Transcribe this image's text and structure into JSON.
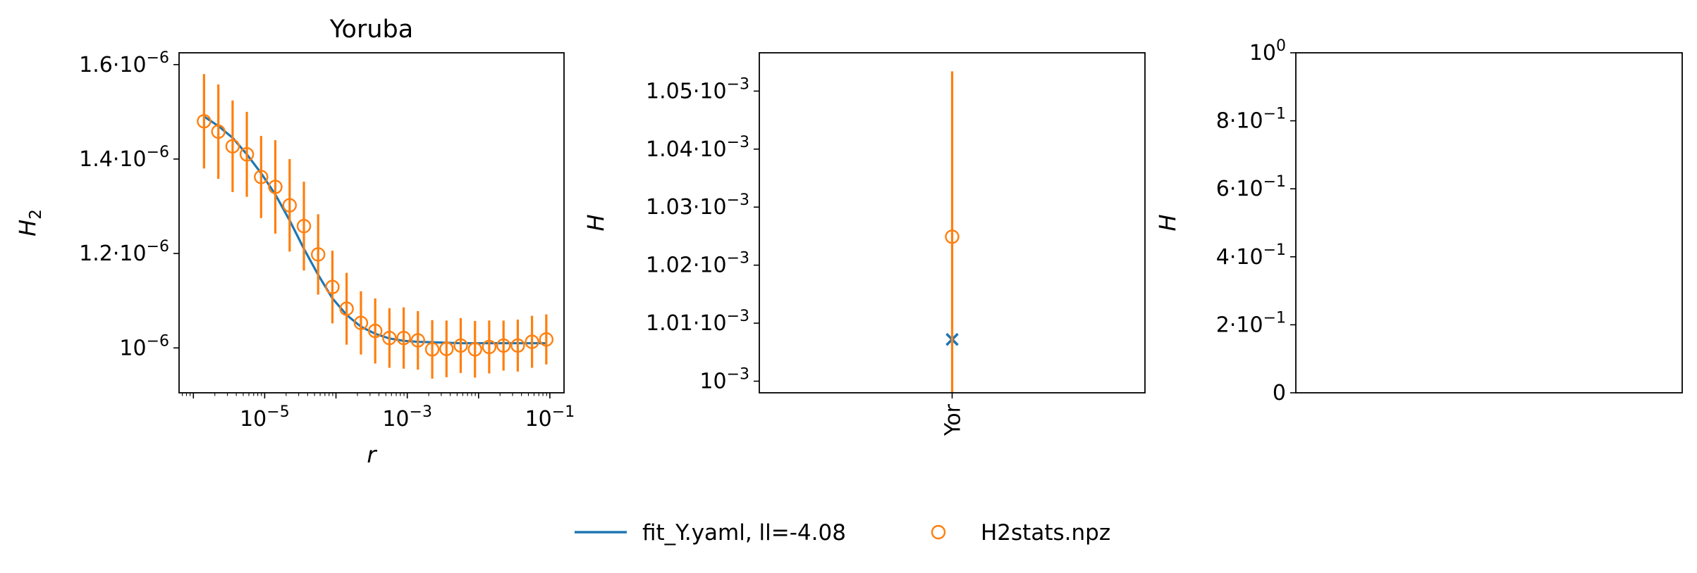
{
  "colors": {
    "model": "#1f77b4",
    "data": "#ff7f0e",
    "axes": "#000000"
  },
  "legend": {
    "placement": "bottom-center",
    "entries": [
      {
        "label": "fit_Y.yaml, ll=-4.08",
        "marker": "line",
        "color": "#1f77b4"
      },
      {
        "label": "H2stats.npz",
        "marker": "open-circle",
        "color": "#ff7f0e"
      }
    ]
  },
  "chart_data": [
    {
      "type": "scatter",
      "title": "Yoruba",
      "xlabel": "r",
      "ylabel": "H",
      "ylabel_sub": "2",
      "x_scale": "log",
      "xlim": [
        6.3e-07,
        0.158
      ],
      "ylim": [
        9.05e-07,
        1.625e-06
      ],
      "x_ticks": [
        {
          "value": 1e-05,
          "base": "10",
          "exp": "−5"
        },
        {
          "value": 0.001,
          "base": "10",
          "exp": "−3"
        },
        {
          "value": 0.1,
          "base": "10",
          "exp": "−1"
        }
      ],
      "y_ticks": [
        {
          "value": 1.6e-06,
          "mant": "1.6",
          "base": "10",
          "exp": "−6"
        },
        {
          "value": 1.4e-06,
          "mant": "1.4",
          "base": "10",
          "exp": "−6"
        },
        {
          "value": 1.2e-06,
          "mant": "1.2",
          "base": "10",
          "exp": "−6"
        },
        {
          "value": 1e-06,
          "mant": "",
          "base": "10",
          "exp": "−6"
        }
      ],
      "grid": false,
      "series": [
        {
          "name": "fit_Y.yaml, ll=-4.08",
          "kind": "line",
          "color": "#1f77b4",
          "x": [
            1.41e-06,
            2.24e-06,
            3.55e-06,
            5.62e-06,
            8.91e-06,
            1.41e-05,
            2.24e-05,
            3.55e-05,
            5.62e-05,
            8.91e-05,
            0.000141,
            0.000224,
            0.000355,
            0.000562,
            0.000891,
            0.00141,
            0.00224,
            0.00355,
            0.00562,
            0.00891,
            0.0141,
            0.0224,
            0.0355,
            0.0562,
            0.0891
          ],
          "y": [
            1.49e-06,
            1.47e-06,
            1.445e-06,
            1.41e-06,
            1.37e-06,
            1.325e-06,
            1.27e-06,
            1.21e-06,
            1.155e-06,
            1.105e-06,
            1.07e-06,
            1.045e-06,
            1.03e-06,
            1.02e-06,
            1.015e-06,
            1.013e-06,
            1.012e-06,
            1.011e-06,
            1.01e-06,
            1.01e-06,
            1.01e-06,
            1.01e-06,
            1.01e-06,
            1.01e-06,
            1.01e-06
          ]
        },
        {
          "name": "H2stats.npz",
          "kind": "errorbar",
          "marker": "open-circle",
          "color": "#ff7f0e",
          "x": [
            1.41e-06,
            2.24e-06,
            3.55e-06,
            5.62e-06,
            8.91e-06,
            1.41e-05,
            2.24e-05,
            3.55e-05,
            5.62e-05,
            8.91e-05,
            0.000141,
            0.000224,
            0.000355,
            0.000562,
            0.000891,
            0.00141,
            0.00224,
            0.00355,
            0.00562,
            0.00891,
            0.0141,
            0.0224,
            0.0355,
            0.0562,
            0.0891
          ],
          "y": [
            1.48e-06,
            1.458e-06,
            1.427e-06,
            1.41e-06,
            1.362e-06,
            1.341e-06,
            1.302e-06,
            1.258e-06,
            1.198e-06,
            1.129e-06,
            1.083e-06,
            1.053e-06,
            1.036e-06,
            1.021e-06,
            1.021e-06,
            1.016e-06,
            9.97e-07,
            9.98e-07,
            1.005e-06,
            9.97e-07,
            1.002e-06,
            1.005e-06,
            1.005e-06,
            1.013e-06,
            1.018e-06
          ],
          "yerr": [
            1e-07,
            1e-07,
            9.7e-08,
            9e-08,
            8.7e-08,
            9.9e-08,
            9.8e-08,
            9.4e-08,
            8.5e-08,
            7.7e-08,
            7.6e-08,
            6.7e-08,
            6.9e-08,
            6.3e-08,
            6.5e-08,
            6.2e-08,
            6.2e-08,
            6e-08,
            5.8e-08,
            6e-08,
            5.6e-08,
            5.3e-08,
            5.5e-08,
            5.5e-08,
            5.3e-08
          ]
        }
      ]
    },
    {
      "type": "scatter",
      "title": "",
      "xlabel": "",
      "ylabel": "H",
      "x_scale": "categorical",
      "categories": [
        "Yor"
      ],
      "ylim": [
        0.000998,
        0.0010566
      ],
      "y_ticks": [
        {
          "value": 0.00105,
          "mant": "1.05",
          "base": "10",
          "exp": "−3"
        },
        {
          "value": 0.00104,
          "mant": "1.04",
          "base": "10",
          "exp": "−3"
        },
        {
          "value": 0.00103,
          "mant": "1.03",
          "base": "10",
          "exp": "−3"
        },
        {
          "value": 0.00102,
          "mant": "1.02",
          "base": "10",
          "exp": "−3"
        },
        {
          "value": 0.00101,
          "mant": "1.01",
          "base": "10",
          "exp": "−3"
        },
        {
          "value": 0.001,
          "mant": "",
          "base": "10",
          "exp": "−3"
        }
      ],
      "grid": false,
      "series": [
        {
          "name": "fit_Y.yaml, ll=-4.08",
          "kind": "marker",
          "marker": "x",
          "color": "#1f77b4",
          "values": [
            0.0010072
          ]
        },
        {
          "name": "H2stats.npz",
          "kind": "errorbar",
          "marker": "open-circle",
          "color": "#ff7f0e",
          "values": [
            0.0010249
          ],
          "yerr": [
            2.85e-05
          ]
        }
      ]
    },
    {
      "type": "scatter",
      "title": "",
      "xlabel": "",
      "ylabel": "H",
      "ylim": [
        0,
        1
      ],
      "y_ticks": [
        {
          "value": 1,
          "mant": "",
          "base": "10",
          "exp": "0"
        },
        {
          "value": 0.8,
          "mant": "8",
          "base": "10",
          "exp": "−1"
        },
        {
          "value": 0.6,
          "mant": "6",
          "base": "10",
          "exp": "−1"
        },
        {
          "value": 0.4,
          "mant": "4",
          "base": "10",
          "exp": "−1"
        },
        {
          "value": 0.2,
          "mant": "2",
          "base": "10",
          "exp": "−1"
        },
        {
          "value": 0,
          "mant": "0",
          "base": "",
          "exp": ""
        }
      ],
      "grid": false,
      "series": []
    }
  ]
}
